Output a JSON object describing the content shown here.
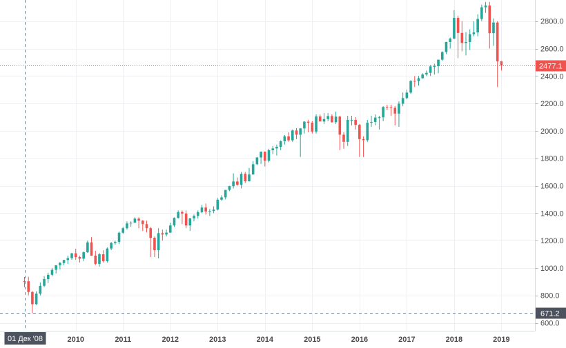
{
  "chart_data": {
    "type": "candlestick",
    "title": "",
    "xlabel": "",
    "ylabel": "",
    "ylim": [
      600,
      3000
    ],
    "y_ticks": [
      "600.0",
      "800.0",
      "1000.0",
      "1200.0",
      "1400.0",
      "1600.0",
      "1800.0",
      "2000.0",
      "2200.0",
      "2400.0",
      "2600.0",
      "2800.0"
    ],
    "y_tick_values": [
      600,
      800,
      1000,
      1200,
      1400,
      1600,
      1800,
      2000,
      2200,
      2400,
      2600,
      2800
    ],
    "x_ticks": [
      "2010",
      "2011",
      "2012",
      "2013",
      "2014",
      "2015",
      "2016",
      "2017",
      "2018",
      "2019"
    ],
    "x_tick_index": [
      13,
      25,
      37,
      49,
      61,
      73,
      85,
      97,
      109,
      121
    ],
    "current_price": {
      "value": 2477.1,
      "label": "2477.1"
    },
    "crosshair": {
      "index": 0,
      "value": 671.2,
      "price_label": "671.2",
      "date_label": "01 Дек '08"
    },
    "colors": {
      "up": "#26a69a",
      "down": "#ef5350",
      "grid": "#eef0f3",
      "axis_text": "#4a4a4a",
      "price_line": "#ef5350",
      "crosshair": "#758696"
    },
    "candles_ohlc": [
      [
        904,
        934,
        860,
        903
      ],
      [
        903,
        936,
        800,
        825
      ],
      [
        825,
        832,
        670,
        736
      ],
      [
        736,
        830,
        730,
        813
      ],
      [
        813,
        895,
        800,
        870
      ],
      [
        870,
        940,
        860,
        919
      ],
      [
        919,
        965,
        890,
        950
      ],
      [
        950,
        1000,
        940,
        987
      ],
      [
        987,
        1020,
        960,
        1020
      ],
      [
        1020,
        1045,
        990,
        1036
      ],
      [
        1036,
        1060,
        1020,
        1058
      ],
      [
        1058,
        1090,
        1030,
        1072
      ],
      [
        1072,
        1110,
        1060,
        1107
      ],
      [
        1107,
        1140,
        1060,
        1080
      ],
      [
        1080,
        1090,
        1040,
        1068
      ],
      [
        1068,
        1120,
        1050,
        1115
      ],
      [
        1115,
        1200,
        1110,
        1187
      ],
      [
        1187,
        1225,
        1090,
        1090
      ],
      [
        1090,
        1125,
        1020,
        1030
      ],
      [
        1030,
        1110,
        1010,
        1100
      ],
      [
        1100,
        1130,
        1040,
        1050
      ],
      [
        1050,
        1150,
        1040,
        1142
      ],
      [
        1142,
        1190,
        1130,
        1182
      ],
      [
        1182,
        1200,
        1170,
        1190
      ],
      [
        1190,
        1265,
        1175,
        1257
      ],
      [
        1257,
        1300,
        1250,
        1290
      ],
      [
        1290,
        1340,
        1280,
        1325
      ],
      [
        1325,
        1340,
        1300,
        1330
      ],
      [
        1330,
        1370,
        1330,
        1360
      ],
      [
        1360,
        1370,
        1290,
        1345
      ],
      [
        1345,
        1350,
        1270,
        1320
      ],
      [
        1320,
        1345,
        1260,
        1290
      ],
      [
        1290,
        1300,
        1080,
        1220
      ],
      [
        1220,
        1230,
        1080,
        1130
      ],
      [
        1130,
        1290,
        1070,
        1254
      ],
      [
        1254,
        1280,
        1200,
        1244
      ],
      [
        1244,
        1280,
        1230,
        1258
      ],
      [
        1258,
        1330,
        1255,
        1310
      ],
      [
        1310,
        1370,
        1300,
        1365
      ],
      [
        1365,
        1420,
        1360,
        1408
      ],
      [
        1408,
        1420,
        1320,
        1397
      ],
      [
        1397,
        1420,
        1290,
        1310
      ],
      [
        1310,
        1365,
        1270,
        1362
      ],
      [
        1362,
        1390,
        1340,
        1380
      ],
      [
        1380,
        1420,
        1360,
        1407
      ],
      [
        1407,
        1460,
        1400,
        1441
      ],
      [
        1441,
        1470,
        1390,
        1412
      ],
      [
        1412,
        1430,
        1380,
        1416
      ],
      [
        1416,
        1450,
        1400,
        1426
      ],
      [
        1426,
        1510,
        1420,
        1498
      ],
      [
        1498,
        1530,
        1490,
        1515
      ],
      [
        1515,
        1570,
        1500,
        1569
      ],
      [
        1569,
        1600,
        1560,
        1597
      ],
      [
        1597,
        1690,
        1580,
        1631
      ],
      [
        1631,
        1660,
        1600,
        1606
      ],
      [
        1606,
        1700,
        1580,
        1686
      ],
      [
        1686,
        1700,
        1620,
        1633
      ],
      [
        1633,
        1730,
        1630,
        1682
      ],
      [
        1682,
        1780,
        1680,
        1757
      ],
      [
        1757,
        1810,
        1750,
        1806
      ],
      [
        1806,
        1850,
        1760,
        1848
      ],
      [
        1848,
        1850,
        1740,
        1782
      ],
      [
        1782,
        1870,
        1770,
        1859
      ],
      [
        1859,
        1890,
        1830,
        1872
      ],
      [
        1872,
        1900,
        1820,
        1884
      ],
      [
        1884,
        1930,
        1860,
        1924
      ],
      [
        1924,
        1970,
        1900,
        1960
      ],
      [
        1960,
        1990,
        1920,
        1931
      ],
      [
        1931,
        2010,
        1920,
        2003
      ],
      [
        2003,
        2020,
        1940,
        1972
      ],
      [
        1972,
        2020,
        1810,
        2018
      ],
      [
        2018,
        2070,
        1980,
        2067
      ],
      [
        2067,
        2080,
        1990,
        2059
      ],
      [
        2059,
        2070,
        1980,
        1995
      ],
      [
        1995,
        2120,
        1980,
        2105
      ],
      [
        2105,
        2120,
        2070,
        2068
      ],
      [
        2068,
        2130,
        2050,
        2086
      ],
      [
        2086,
        2130,
        2070,
        2108
      ],
      [
        2108,
        2120,
        2060,
        2063
      ],
      [
        2063,
        2140,
        2050,
        2104
      ],
      [
        2104,
        2110,
        1860,
        1972
      ],
      [
        1972,
        1990,
        1870,
        1920
      ],
      [
        1920,
        2110,
        1890,
        2080
      ],
      [
        2080,
        2110,
        2040,
        2080
      ],
      [
        2080,
        2100,
        2010,
        2044
      ],
      [
        2044,
        2050,
        1810,
        1940
      ],
      [
        1940,
        1960,
        1810,
        1932
      ],
      [
        1932,
        2080,
        1920,
        2060
      ],
      [
        2060,
        2110,
        2030,
        2065
      ],
      [
        2065,
        2120,
        2040,
        2097
      ],
      [
        2097,
        2110,
        2010,
        2099
      ],
      [
        2099,
        2180,
        2070,
        2174
      ],
      [
        2174,
        2190,
        2150,
        2171
      ],
      [
        2171,
        2190,
        2110,
        2168
      ],
      [
        2168,
        2180,
        2040,
        2126
      ],
      [
        2126,
        2215,
        2030,
        2198
      ],
      [
        2198,
        2280,
        2180,
        2239
      ],
      [
        2239,
        2300,
        2230,
        2279
      ],
      [
        2279,
        2370,
        2270,
        2364
      ],
      [
        2364,
        2400,
        2320,
        2362
      ],
      [
        2362,
        2400,
        2330,
        2384
      ],
      [
        2384,
        2420,
        2380,
        2411
      ],
      [
        2411,
        2440,
        2400,
        2423
      ],
      [
        2423,
        2480,
        2400,
        2470
      ],
      [
        2470,
        2490,
        2410,
        2472
      ],
      [
        2472,
        2520,
        2420,
        2519
      ],
      [
        2519,
        2580,
        2510,
        2575
      ],
      [
        2575,
        2650,
        2560,
        2648
      ],
      [
        2648,
        2680,
        2600,
        2673
      ],
      [
        2673,
        2880,
        2670,
        2824
      ],
      [
        2824,
        2840,
        2530,
        2714
      ],
      [
        2714,
        2800,
        2580,
        2641
      ],
      [
        2641,
        2720,
        2550,
        2648
      ],
      [
        2648,
        2740,
        2590,
        2705
      ],
      [
        2705,
        2800,
        2690,
        2718
      ],
      [
        2718,
        2850,
        2690,
        2816
      ],
      [
        2816,
        2920,
        2800,
        2901
      ],
      [
        2901,
        2940,
        2860,
        2914
      ],
      [
        2914,
        2940,
        2600,
        2712
      ],
      [
        2712,
        2820,
        2620,
        2790
      ],
      [
        2790,
        2800,
        2320,
        2507
      ],
      [
        2507,
        2510,
        2440,
        2477
      ]
    ]
  }
}
